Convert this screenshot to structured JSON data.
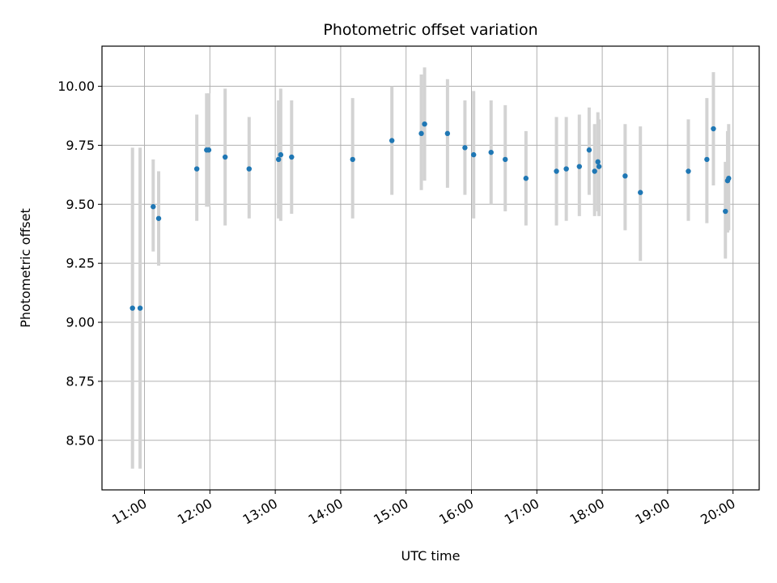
{
  "chart_data": {
    "type": "scatter",
    "title": "Photometric offset variation",
    "xlabel": "UTC time",
    "ylabel": "Photometric offset",
    "x_type": "time",
    "xlim": [
      "10:21",
      "20:24"
    ],
    "ylim": [
      8.29,
      10.17
    ],
    "x_ticks": [
      "11:00",
      "12:00",
      "13:00",
      "14:00",
      "15:00",
      "16:00",
      "17:00",
      "18:00",
      "19:00",
      "20:00"
    ],
    "y_ticks": [
      "8.50",
      "8.75",
      "9.00",
      "9.25",
      "9.50",
      "9.75",
      "10.00"
    ],
    "grid": true,
    "marker_color": "#1f77b4",
    "errorbar_color": "#d3d3d3",
    "series": [
      {
        "points": [
          {
            "x": "10:49",
            "y": 9.06,
            "low": 8.38,
            "high": 9.74
          },
          {
            "x": "10:56",
            "y": 9.06,
            "low": 8.38,
            "high": 9.74
          },
          {
            "x": "11:08",
            "y": 9.49,
            "low": 9.3,
            "high": 9.69
          },
          {
            "x": "11:13",
            "y": 9.44,
            "low": 9.24,
            "high": 9.64
          },
          {
            "x": "11:48",
            "y": 9.65,
            "low": 9.43,
            "high": 9.88
          },
          {
            "x": "11:57",
            "y": 9.73,
            "low": 9.49,
            "high": 9.97
          },
          {
            "x": "11:59",
            "y": 9.73,
            "low": 9.49,
            "high": 9.97
          },
          {
            "x": "12:14",
            "y": 9.7,
            "low": 9.41,
            "high": 9.99
          },
          {
            "x": "12:36",
            "y": 9.65,
            "low": 9.44,
            "high": 9.87
          },
          {
            "x": "13:03",
            "y": 9.69,
            "low": 9.44,
            "high": 9.94
          },
          {
            "x": "13:05",
            "y": 9.71,
            "low": 9.43,
            "high": 9.99
          },
          {
            "x": "13:15",
            "y": 9.7,
            "low": 9.46,
            "high": 9.94
          },
          {
            "x": "14:11",
            "y": 9.69,
            "low": 9.44,
            "high": 9.95
          },
          {
            "x": "14:47",
            "y": 9.77,
            "low": 9.54,
            "high": 10.0
          },
          {
            "x": "15:14",
            "y": 9.8,
            "low": 9.56,
            "high": 10.05
          },
          {
            "x": "15:17",
            "y": 9.84,
            "low": 9.6,
            "high": 10.08
          },
          {
            "x": "15:38",
            "y": 9.8,
            "low": 9.57,
            "high": 10.03
          },
          {
            "x": "15:54",
            "y": 9.74,
            "low": 9.54,
            "high": 9.94
          },
          {
            "x": "16:02",
            "y": 9.71,
            "low": 9.44,
            "high": 9.98
          },
          {
            "x": "16:18",
            "y": 9.72,
            "low": 9.5,
            "high": 9.94
          },
          {
            "x": "16:31",
            "y": 9.69,
            "low": 9.47,
            "high": 9.92
          },
          {
            "x": "16:50",
            "y": 9.61,
            "low": 9.41,
            "high": 9.81
          },
          {
            "x": "17:18",
            "y": 9.64,
            "low": 9.41,
            "high": 9.87
          },
          {
            "x": "17:27",
            "y": 9.65,
            "low": 9.43,
            "high": 9.87
          },
          {
            "x": "17:39",
            "y": 9.66,
            "low": 9.45,
            "high": 9.88
          },
          {
            "x": "17:48",
            "y": 9.73,
            "low": 9.54,
            "high": 9.91
          },
          {
            "x": "17:53",
            "y": 9.64,
            "low": 9.45,
            "high": 9.84
          },
          {
            "x": "17:56",
            "y": 9.68,
            "low": 9.47,
            "high": 9.89
          },
          {
            "x": "17:57",
            "y": 9.66,
            "low": 9.45,
            "high": 9.86
          },
          {
            "x": "18:21",
            "y": 9.62,
            "low": 9.39,
            "high": 9.84
          },
          {
            "x": "18:35",
            "y": 9.55,
            "low": 9.26,
            "high": 9.83
          },
          {
            "x": "19:19",
            "y": 9.64,
            "low": 9.43,
            "high": 9.86
          },
          {
            "x": "19:36",
            "y": 9.69,
            "low": 9.42,
            "high": 9.95
          },
          {
            "x": "19:42",
            "y": 9.82,
            "low": 9.58,
            "high": 10.06
          },
          {
            "x": "19:53",
            "y": 9.47,
            "low": 9.27,
            "high": 9.68
          },
          {
            "x": "19:55",
            "y": 9.6,
            "low": 9.38,
            "high": 9.81
          },
          {
            "x": "19:56",
            "y": 9.61,
            "low": 9.39,
            "high": 9.84
          }
        ]
      }
    ]
  }
}
